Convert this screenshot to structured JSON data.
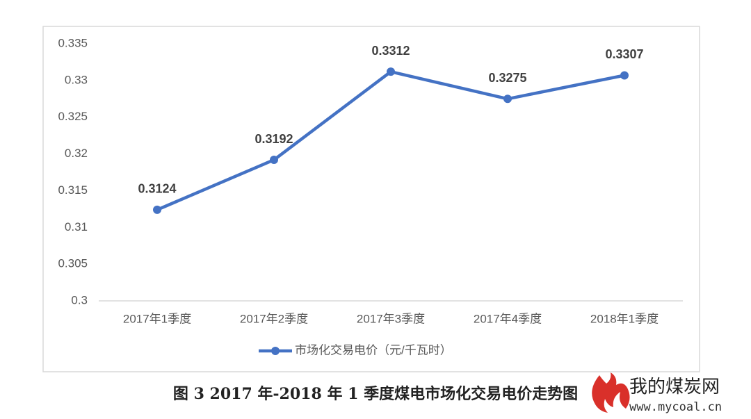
{
  "chart_data": {
    "type": "line",
    "categories": [
      "2017年1季度",
      "2017年2季度",
      "2017年3季度",
      "2017年4季度",
      "2018年1季度"
    ],
    "series": [
      {
        "name": "市场化交易电价（元/千瓦时）",
        "color": "#4472c4",
        "values": [
          0.3124,
          0.3192,
          0.3312,
          0.3275,
          0.3307
        ]
      }
    ],
    "ylim": [
      0.3,
      0.335
    ],
    "yticks": [
      0.3,
      0.305,
      0.31,
      0.315,
      0.32,
      0.325,
      0.33,
      0.335
    ],
    "grid": false,
    "legend": "bottom"
  },
  "caption": "图 3  2017 年-2018 年 1 季度煤电市场化交易电价走势图",
  "watermark": {
    "name": "我的煤炭网",
    "url": "www.mycoal.cn"
  }
}
